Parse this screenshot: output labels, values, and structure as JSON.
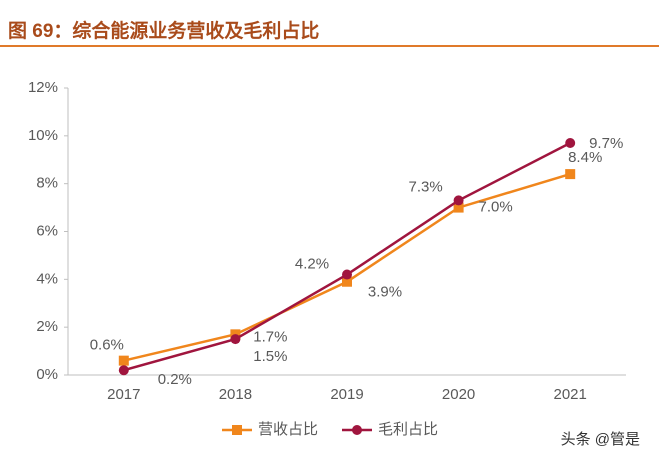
{
  "chart_data": {
    "type": "line",
    "title": "图 69：综合能源业务营收及毛利占比",
    "categories": [
      "2017",
      "2018",
      "2019",
      "2020",
      "2021"
    ],
    "series": [
      {
        "name": "营收占比",
        "color": "#f0861c",
        "marker": "square",
        "values": [
          0.6,
          1.7,
          3.9,
          7.0,
          8.4
        ],
        "value_labels": [
          "0.6%",
          "1.7%",
          "3.9%",
          "7.0%",
          "8.4%"
        ]
      },
      {
        "name": "毛利占比",
        "color": "#a0153e",
        "marker": "circle",
        "values": [
          0.2,
          1.5,
          4.2,
          7.3,
          9.7
        ],
        "value_labels": [
          "0.2%",
          "1.5%",
          "4.2%",
          "7.3%",
          "9.7%"
        ]
      }
    ],
    "ylim": [
      0,
      12
    ],
    "yticks": [
      {
        "value": 0,
        "label": "0%"
      },
      {
        "value": 2,
        "label": "2%"
      },
      {
        "value": 4,
        "label": "4%"
      },
      {
        "value": 6,
        "label": "6%"
      },
      {
        "value": 8,
        "label": "8%"
      },
      {
        "value": 10,
        "label": "10%"
      },
      {
        "value": 12,
        "label": "12%"
      }
    ],
    "grid": false,
    "legend": "bottom",
    "watermark": "头条 @管是"
  }
}
